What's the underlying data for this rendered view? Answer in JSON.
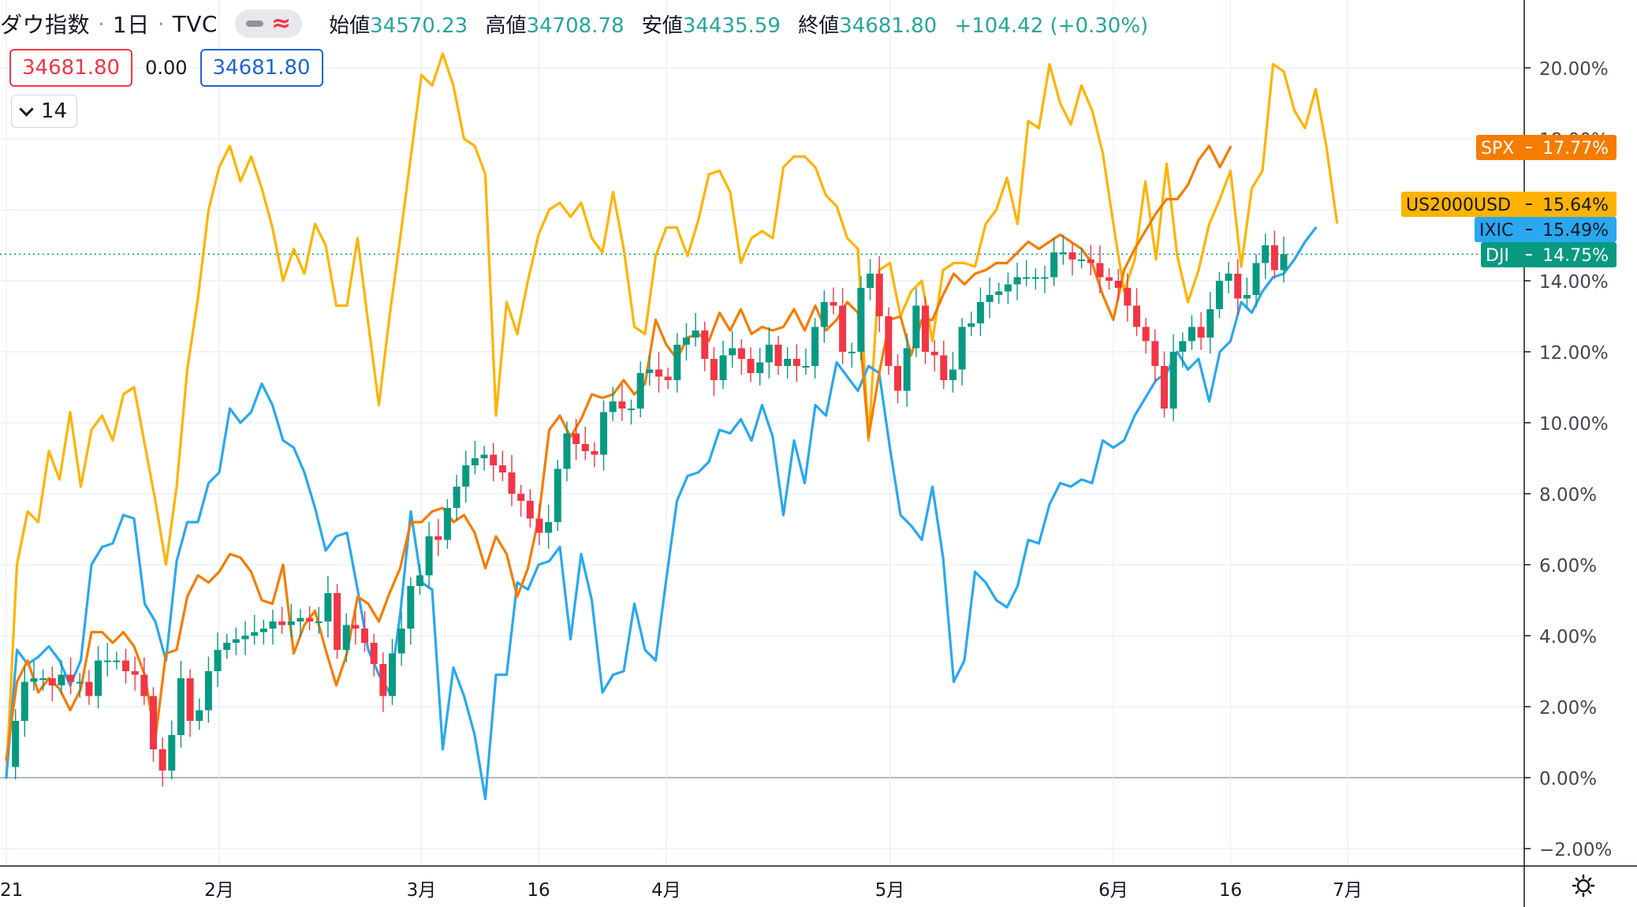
{
  "header": {
    "title": "ダウ指数",
    "sep": "·",
    "interval": "1日",
    "source": "TVC",
    "ohlc": [
      {
        "label": "始値",
        "value": "34570.23"
      },
      {
        "label": "高値",
        "value": "34708.78"
      },
      {
        "label": "安値",
        "value": "34435.59"
      },
      {
        "label": "終値",
        "value": "34681.80"
      }
    ],
    "change": "+104.42 (+0.30%)"
  },
  "price_boxes": {
    "bid": "34681.80",
    "spread": "0.00",
    "ask": "34681.80"
  },
  "indicators_toggle": {
    "count": "14"
  },
  "colors": {
    "SPX": "#f57c00",
    "US2000USD": "#ffb300",
    "IXIC": "#29a8f0",
    "DJI": "#089981",
    "candle_up": "#089981",
    "candle_down": "#f23645",
    "grid": "#e6eef5"
  },
  "icons": {
    "settings": "gear-icon",
    "toggle": "chevron-down-icon",
    "line": "minus-icon",
    "compare": "wave-icon"
  },
  "chart_data": {
    "type": "line",
    "title": "",
    "xlabel": "",
    "ylabel": "",
    "ylim": [
      -2.5,
      21.5
    ],
    "y_ticks": [
      -2,
      0,
      2,
      4,
      6,
      8,
      10,
      12,
      14,
      16,
      18,
      20
    ],
    "y_tick_labels": [
      "−2.00%",
      "0.00%",
      "2.00%",
      "4.00%",
      "6.00%",
      "8.00%",
      "10.00%",
      "12.00%",
      "14.00%",
      "16.00%",
      "18.00%",
      "20.00%"
    ],
    "x_labels": [
      {
        "day": 0,
        "text": "21"
      },
      {
        "day": 20,
        "text": "2月"
      },
      {
        "day": 39,
        "text": "3月"
      },
      {
        "day": 50,
        "text": "16"
      },
      {
        "day": 62,
        "text": "4月"
      },
      {
        "day": 83,
        "text": "5月"
      },
      {
        "day": 104,
        "text": "6月"
      },
      {
        "day": 115,
        "text": "16"
      },
      {
        "day": 126,
        "text": "7月"
      }
    ],
    "grid": true,
    "last_value_line": 14.75,
    "series": [
      {
        "name": "US2000USD",
        "last_label": "15.64%",
        "values": [
          0,
          6,
          7.5,
          7.2,
          9.2,
          8.4,
          10.3,
          8.2,
          9.8,
          10.2,
          9.5,
          10.8,
          11,
          9.4,
          7.8,
          6,
          8.2,
          11.5,
          13.5,
          16,
          17.2,
          17.8,
          16.8,
          17.5,
          16.6,
          15.5,
          14,
          14.9,
          14.2,
          15.6,
          15,
          13.3,
          13.3,
          15.2,
          12.8,
          10.5,
          13,
          15.2,
          17.5,
          19.8,
          19.5,
          20.4,
          19.5,
          18,
          17.8,
          17,
          10.2,
          13.4,
          12.5,
          14,
          15.3,
          16,
          16.2,
          15.8,
          16.2,
          15.2,
          14.8,
          16.5,
          14.9,
          12.7,
          12.5,
          14.7,
          15.5,
          15.5,
          14.7,
          15.7,
          17,
          17.1,
          16.5,
          14.5,
          15.2,
          15.4,
          15.2,
          17.2,
          17.5,
          17.5,
          17.2,
          16.4,
          16.1,
          15.2,
          14.9,
          9.5,
          14.3,
          14.5,
          13,
          13.7,
          14,
          12.3,
          14.3,
          14.5,
          14.5,
          14.4,
          15.6,
          16,
          16.9,
          15.6,
          18.5,
          18.3,
          20.1,
          19,
          18.4,
          19.5,
          18.8,
          17.6,
          15.6,
          13.7,
          14.6,
          16.8,
          14.6,
          17.3,
          14.7,
          13.4,
          14.3,
          15.6,
          16.3,
          17.1,
          14.4,
          16.6,
          17.1,
          20.1,
          19.9,
          18.8,
          18.3,
          19.4,
          17.8,
          15.64
        ]
      },
      {
        "name": "SPX",
        "last_label": "17.77%",
        "values": [
          0.5,
          2.7,
          3.3,
          2.4,
          2.8,
          2.5,
          1.9,
          2.5,
          4.1,
          4.1,
          3.8,
          4.1,
          3.7,
          2.9,
          1.1,
          3.5,
          3.6,
          5.1,
          5.7,
          5.5,
          5.8,
          6.3,
          6.2,
          5.8,
          5,
          4.9,
          6,
          3.5,
          4.3,
          4.7,
          3.6,
          2.6,
          3.5,
          5.1,
          4.9,
          4.4,
          5.2,
          5.9,
          7.2,
          7.2,
          7.5,
          7.6,
          7.2,
          7.4,
          6.9,
          5.9,
          6.8,
          6.3,
          5.1,
          5.9,
          7.3,
          9.8,
          10.2,
          9.6,
          10.1,
          10.8,
          10.7,
          10.8,
          11.2,
          10.8,
          11.1,
          12.9,
          12.2,
          11.8,
          12.4,
          12.5,
          12.3,
          13.1,
          12.6,
          13.2,
          12.5,
          12.7,
          12.6,
          12.7,
          13.2,
          12.6,
          13.3,
          12.6,
          12.9,
          13.4,
          13.1,
          9.6,
          11.4,
          12.9,
          13,
          11.9,
          12.9,
          12.9,
          13.6,
          14.2,
          13.9,
          14.2,
          14.3,
          14.5,
          14.5,
          14.8,
          15.1,
          14.9,
          15.1,
          15.3,
          15.1,
          14.9,
          14.5,
          13.6,
          12.9,
          14.3,
          14.9,
          15.4,
          15.9,
          16.3,
          16.3,
          16.7,
          17.4,
          17.8,
          17.2,
          17.77
        ]
      },
      {
        "name": "IXIC",
        "last_label": "15.49%",
        "values": [
          0,
          3.6,
          3.2,
          3.4,
          3.7,
          3.3,
          2.6,
          3.3,
          6,
          6.5,
          6.6,
          7.4,
          7.3,
          4.9,
          4.4,
          3.3,
          6.1,
          7.2,
          7.2,
          8.3,
          8.6,
          10.4,
          10,
          10.3,
          11.1,
          10.5,
          9.5,
          9.3,
          8.6,
          7.6,
          6.4,
          6.8,
          6.9,
          5.3,
          3.6,
          2.9,
          2.4,
          4.6,
          7.5,
          5.5,
          5.3,
          0.8,
          3.1,
          2.3,
          1.2,
          -0.6,
          2.9,
          2.9,
          5.5,
          5.3,
          6,
          6.1,
          6.5,
          3.9,
          6.3,
          5,
          2.4,
          2.9,
          3,
          4.9,
          3.6,
          3.3,
          5.6,
          7.8,
          8.5,
          8.6,
          8.9,
          9.8,
          9.7,
          10.1,
          9.5,
          10.5,
          9.6,
          7.4,
          9.5,
          8.3,
          10.5,
          10.2,
          11.7,
          11.3,
          10.9,
          11.6,
          11.4,
          9.3,
          7.4,
          7.1,
          6.7,
          8.2,
          6.2,
          2.7,
          3.3,
          5.8,
          5.5,
          5,
          4.8,
          5.4,
          6.7,
          6.6,
          7.7,
          8.3,
          8.2,
          8.4,
          8.3,
          9.5,
          9.3,
          9.5,
          10.2,
          10.7,
          11.2,
          11.4,
          12,
          11.5,
          11.8,
          10.6,
          12,
          12.3,
          13.4,
          13.1,
          13.7,
          14.1,
          14.2,
          14.6,
          15.1,
          15.49
        ]
      },
      {
        "name": "DJI",
        "last_label": "14.75%",
        "candles": true,
        "values": [
          0.3,
          1.6,
          2.7,
          2.8,
          2.8,
          2.6,
          2.9,
          2.7,
          2.7,
          2.3,
          3.3,
          3.3,
          3.3,
          3.0,
          2.9,
          2.3,
          0.8,
          0.2,
          1.2,
          2.8,
          1.6,
          1.9,
          3.0,
          3.6,
          3.8,
          3.9,
          4.0,
          4.1,
          4.2,
          4.4,
          4.3,
          4.4,
          4.5,
          4.4,
          4.4,
          5.2,
          3.6,
          4.3,
          4.2,
          3.8,
          3.2,
          2.3,
          3.5,
          4.2,
          5.4,
          5.7,
          6.8,
          6.7,
          7.6,
          8.2,
          8.8,
          9.0,
          9.1,
          8.8,
          8.6,
          8.0,
          7.8,
          7.3,
          6.9,
          7.2,
          8.7,
          9.7,
          9.4,
          9.2,
          9.1,
          10.3,
          10.6,
          10.4,
          10.4,
          11.4,
          11.5,
          11.3,
          11.2,
          12.2,
          12.4,
          12.6,
          11.8,
          11.2,
          11.9,
          12.1,
          11.8,
          11.4,
          11.7,
          12.2,
          11.6,
          11.8,
          11.6,
          11.6,
          12.7,
          13.4,
          13.3,
          12.0,
          12.0,
          13.8,
          14.2,
          13.0,
          11.6,
          10.9,
          12.1,
          13.3,
          12.0,
          11.9,
          11.2,
          11.5,
          12.7,
          12.8,
          13.4,
          13.6,
          13.7,
          13.9,
          14.1,
          14.1,
          14.1,
          14.1,
          14.8,
          14.8,
          14.6,
          14.6,
          14.5,
          14.1,
          14.0,
          13.8,
          13.3,
          12.7,
          12.3,
          11.6,
          10.4,
          12.0,
          12.3,
          12.7,
          12.4,
          13.2,
          14.0,
          14.2,
          13.5,
          13.6,
          14.5,
          15.0,
          14.3,
          14.75
        ]
      }
    ]
  }
}
